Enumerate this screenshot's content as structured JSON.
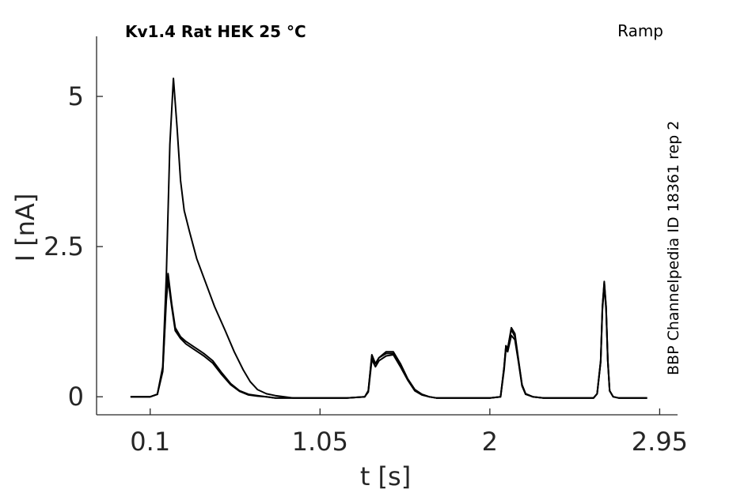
{
  "chart_data": {
    "type": "line",
    "title": "Kv1.4  Rat  HEK  25 °C",
    "protocol_label": "Ramp",
    "side_label": "BBP Channelpedia ID 18361 rep 2",
    "xlabel": "t [s]",
    "ylabel": "I [nA]",
    "xlim": [
      -0.2,
      3.05
    ],
    "ylim": [
      -0.3,
      6.0
    ],
    "xticks": [
      0.1,
      1.05,
      2,
      2.95
    ],
    "xtick_labels": [
      "0.1",
      "1.05",
      "2",
      "2.95"
    ],
    "yticks": [
      0,
      2.5,
      5
    ],
    "ytick_labels": [
      "0",
      "2.5",
      "5"
    ],
    "grid": false,
    "series": [
      {
        "x": [
          -0.01,
          0.05,
          0.1,
          0.14,
          0.17,
          0.19,
          0.21,
          0.23,
          0.25,
          0.27,
          0.29,
          0.32,
          0.36,
          0.41,
          0.46,
          0.52,
          0.57,
          0.62,
          0.66,
          0.7,
          0.75,
          0.8,
          0.9,
          1.0,
          1.1,
          1.2,
          1.3,
          1.32,
          1.34,
          1.36,
          1.38,
          1.42,
          1.46,
          1.5,
          1.54,
          1.58,
          1.62,
          1.66,
          1.7,
          1.8,
          1.9,
          2.0,
          2.06,
          2.08,
          2.09,
          2.1,
          2.12,
          2.14,
          2.16,
          2.18,
          2.2,
          2.24,
          2.3,
          2.4,
          2.5,
          2.58,
          2.6,
          2.62,
          2.63,
          2.64,
          2.65,
          2.66,
          2.67,
          2.69,
          2.72,
          2.8,
          2.88
        ],
        "y": [
          0,
          0,
          0,
          0.04,
          0.5,
          2.0,
          4.2,
          5.3,
          4.5,
          3.6,
          3.1,
          2.75,
          2.3,
          1.9,
          1.5,
          1.1,
          0.75,
          0.45,
          0.25,
          0.12,
          0.05,
          0.02,
          -0.02,
          -0.02,
          -0.02,
          -0.02,
          0.0,
          0.1,
          0.68,
          0.55,
          0.65,
          0.72,
          0.72,
          0.55,
          0.3,
          0.12,
          0.04,
          0.0,
          -0.02,
          -0.02,
          -0.02,
          -0.02,
          0.0,
          0.5,
          0.85,
          0.8,
          1.12,
          1.0,
          0.6,
          0.2,
          0.05,
          0.0,
          -0.02,
          -0.02,
          -0.02,
          -0.02,
          0.05,
          0.6,
          1.5,
          1.9,
          1.5,
          0.6,
          0.1,
          0.0,
          -0.02,
          -0.02,
          -0.02
        ]
      },
      {
        "x": [
          -0.01,
          0.05,
          0.1,
          0.14,
          0.17,
          0.19,
          0.2,
          0.22,
          0.24,
          0.27,
          0.3,
          0.35,
          0.4,
          0.45,
          0.5,
          0.55,
          0.6,
          0.65,
          0.7,
          0.75,
          0.8,
          0.9,
          1.0,
          1.1,
          1.2,
          1.3,
          1.32,
          1.34,
          1.36,
          1.38,
          1.42,
          1.46,
          1.5,
          1.54,
          1.58,
          1.62,
          1.66,
          1.7,
          1.8,
          1.9,
          2.0,
          2.06,
          2.08,
          2.09,
          2.1,
          2.12,
          2.14,
          2.16,
          2.18,
          2.2,
          2.24,
          2.3,
          2.4,
          2.5,
          2.58,
          2.6,
          2.62,
          2.63,
          2.64,
          2.65,
          2.66,
          2.67,
          2.69,
          2.72,
          2.8,
          2.88
        ],
        "y": [
          0,
          0,
          0,
          0.04,
          0.45,
          1.7,
          2.05,
          1.55,
          1.15,
          1.0,
          0.92,
          0.82,
          0.72,
          0.6,
          0.4,
          0.22,
          0.1,
          0.04,
          0.02,
          0.0,
          -0.02,
          -0.02,
          -0.02,
          -0.02,
          -0.02,
          0.0,
          0.1,
          0.7,
          0.55,
          0.65,
          0.75,
          0.75,
          0.55,
          0.3,
          0.12,
          0.04,
          0.0,
          -0.02,
          -0.02,
          -0.02,
          -0.02,
          0.0,
          0.5,
          0.85,
          0.8,
          1.15,
          1.05,
          0.62,
          0.2,
          0.05,
          0.0,
          -0.02,
          -0.02,
          -0.02,
          -0.02,
          0.05,
          0.6,
          1.5,
          1.92,
          1.5,
          0.6,
          0.1,
          0.0,
          -0.02,
          -0.02,
          -0.02
        ]
      },
      {
        "x": [
          -0.01,
          0.05,
          0.1,
          0.14,
          0.17,
          0.19,
          0.2,
          0.22,
          0.24,
          0.27,
          0.3,
          0.35,
          0.4,
          0.45,
          0.5,
          0.55,
          0.6,
          0.65,
          0.7,
          0.75,
          0.8,
          0.9,
          1.0,
          1.1,
          1.2,
          1.3,
          1.32,
          1.34,
          1.36,
          1.38,
          1.42,
          1.46,
          1.5,
          1.54,
          1.58,
          1.62,
          1.66,
          1.7,
          1.8,
          1.9,
          2.0,
          2.06,
          2.08,
          2.09,
          2.1,
          2.12,
          2.14,
          2.16,
          2.18,
          2.2,
          2.24,
          2.3,
          2.4,
          2.5,
          2.58,
          2.6,
          2.62,
          2.63,
          2.64,
          2.65,
          2.66,
          2.67,
          2.69,
          2.72,
          2.8,
          2.88
        ],
        "y": [
          0,
          0,
          0,
          0.04,
          0.42,
          1.6,
          1.95,
          1.5,
          1.1,
          0.97,
          0.88,
          0.78,
          0.68,
          0.56,
          0.37,
          0.2,
          0.09,
          0.03,
          0.01,
          0.0,
          -0.02,
          -0.02,
          -0.02,
          -0.02,
          -0.02,
          0.0,
          0.08,
          0.62,
          0.5,
          0.6,
          0.68,
          0.7,
          0.5,
          0.28,
          0.1,
          0.03,
          0.0,
          -0.02,
          -0.02,
          -0.02,
          -0.02,
          0.0,
          0.45,
          0.8,
          0.75,
          1.02,
          0.95,
          0.58,
          0.18,
          0.04,
          0.0,
          -0.02,
          -0.02,
          -0.02,
          -0.02,
          0.05,
          0.58,
          1.45,
          1.85,
          1.45,
          0.58,
          0.1,
          0.0,
          -0.02,
          -0.02,
          -0.02
        ]
      }
    ]
  }
}
